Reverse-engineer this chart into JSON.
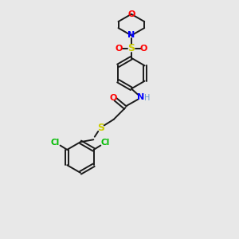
{
  "bg_color": "#e8e8e8",
  "bond_color": "#1a1a1a",
  "colors": {
    "O": "#ff0000",
    "N": "#0000ff",
    "S": "#cccc00",
    "Cl": "#00bb00",
    "C": "#1a1a1a",
    "H": "#6699cc"
  }
}
